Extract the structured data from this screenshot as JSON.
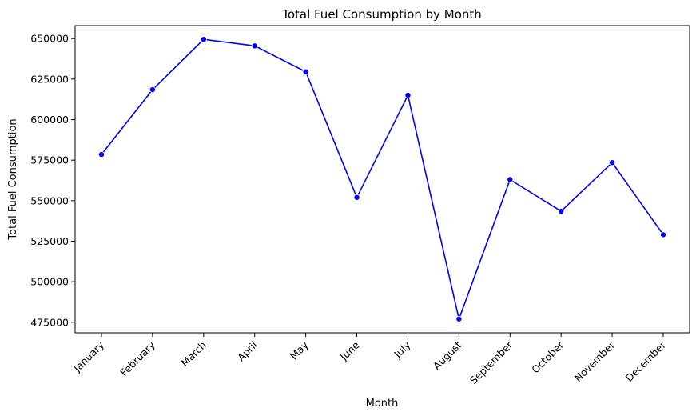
{
  "chart_data": {
    "type": "line",
    "title": "Total Fuel Consumption by Month",
    "xlabel": "Month",
    "ylabel": "Total Fuel Consumption",
    "categories": [
      "January",
      "February",
      "March",
      "April",
      "May",
      "June",
      "July",
      "August",
      "September",
      "October",
      "November",
      "December"
    ],
    "series": [
      {
        "name": "",
        "color": "#0000ff",
        "marker": "circle",
        "values": [
          578500,
          618500,
          649500,
          645500,
          629500,
          552000,
          615000,
          477000,
          563000,
          543500,
          573500,
          529000
        ]
      }
    ],
    "ylim": [
      468500,
      658000
    ],
    "yticks": [
      475000,
      500000,
      525000,
      550000,
      575000,
      600000,
      625000,
      650000
    ],
    "ytick_labels": [
      "475000",
      "500000",
      "525000",
      "550000",
      "575000",
      "600000",
      "625000",
      "650000"
    ],
    "xtick_rotation": 45,
    "grid": false,
    "legend": "none"
  }
}
